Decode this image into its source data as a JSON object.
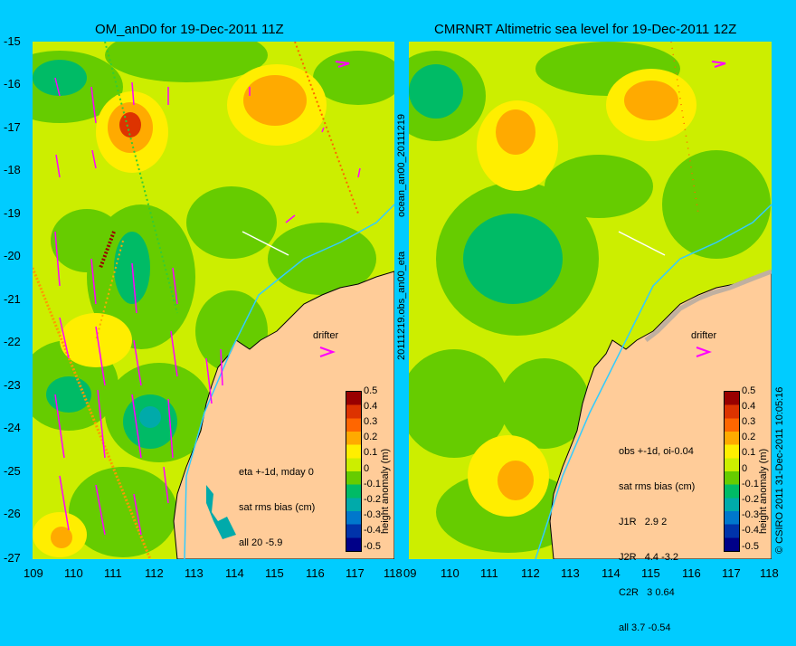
{
  "left_panel": {
    "title": "OM_anD0 for 19-Dec-2011 11Z",
    "info_lines": [
      "eta +-1d, mday 0",
      "sat rms bias (cm)",
      "all 20 -5.9"
    ],
    "drifter_label": "drifter"
  },
  "right_panel": {
    "title": "CMRNRT Altimetric sea level  for 19-Dec-2011 12Z",
    "info_lines": [
      "obs +-1d, oi-0.04",
      "sat rms bias (cm)",
      "J1R   2.9 2",
      "J2R   4.4 -3.2",
      "C2R   3 0.64",
      "all 3.7 -0.54"
    ],
    "drifter_label": "drifter"
  },
  "axes": {
    "y_ticks": [
      "-15",
      "-16",
      "-17",
      "-18",
      "-19",
      "-20",
      "-21",
      "-22",
      "-23",
      "-24",
      "-25",
      "-26",
      "-27"
    ],
    "x_ticks_left": [
      "109",
      "110",
      "111",
      "112",
      "113",
      "114",
      "115",
      "116",
      "117",
      "118"
    ],
    "x_ticks_right": [
      "09",
      "110",
      "111",
      "112",
      "113",
      "114",
      "115",
      "116",
      "117",
      "118"
    ]
  },
  "colorbar": {
    "label": "height anomaly (m)",
    "ticks": [
      "0.5",
      "0.4",
      "0.3",
      "0.2",
      "0.1",
      "0",
      "-0.1",
      "-0.2",
      "-0.3",
      "-0.4",
      "-0.5"
    ],
    "colors": [
      "#990000",
      "#dd3300",
      "#ff6600",
      "#ffaa00",
      "#ffee00",
      "#ccee00",
      "#66cc00",
      "#00bb66",
      "#00aaaa",
      "#0077cc",
      "#0033aa",
      "#000088"
    ]
  },
  "side_labels": {
    "middle_top": "ocean_an00_20111219",
    "middle_bottom": "20111219.obs_an00_eta",
    "right_edge": "© CSIRO 2011   31-Dec-2011 10:05:16"
  }
}
